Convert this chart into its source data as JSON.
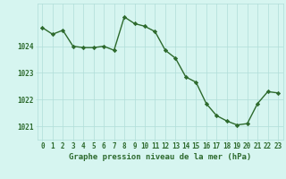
{
  "x": [
    0,
    1,
    2,
    3,
    4,
    5,
    6,
    7,
    8,
    9,
    10,
    11,
    12,
    13,
    14,
    15,
    16,
    17,
    18,
    19,
    20,
    21,
    22,
    23
  ],
  "y": [
    1024.7,
    1024.45,
    1024.6,
    1024.0,
    1023.95,
    1023.95,
    1024.0,
    1023.85,
    1025.1,
    1024.85,
    1024.75,
    1024.55,
    1023.85,
    1023.55,
    1022.85,
    1022.65,
    1021.85,
    1021.4,
    1021.2,
    1021.05,
    1021.1,
    1021.85,
    1022.3,
    1022.25
  ],
  "line_color": "#2d6a2d",
  "marker": "D",
  "marker_size": 2.2,
  "bg_color": "#d6f5f0",
  "grid_color": "#b0ddd8",
  "ylabel_ticks": [
    1021,
    1022,
    1023,
    1024
  ],
  "xlim": [
    -0.5,
    23.5
  ],
  "ylim": [
    1020.5,
    1025.6
  ],
  "xlabel": "Graphe pression niveau de la mer (hPa)",
  "xlabel_fontsize": 6.5,
  "tick_fontsize": 5.5,
  "line_width": 1.0,
  "xticks": [
    0,
    1,
    2,
    3,
    4,
    5,
    6,
    7,
    8,
    9,
    10,
    11,
    12,
    13,
    14,
    15,
    16,
    17,
    18,
    19,
    20,
    21,
    22,
    23
  ],
  "xtick_labels": [
    "0",
    "1",
    "2",
    "3",
    "4",
    "5",
    "6",
    "7",
    "8",
    "9",
    "10",
    "11",
    "12",
    "13",
    "14",
    "15",
    "16",
    "17",
    "18",
    "19",
    "20",
    "21",
    "22",
    "23"
  ]
}
